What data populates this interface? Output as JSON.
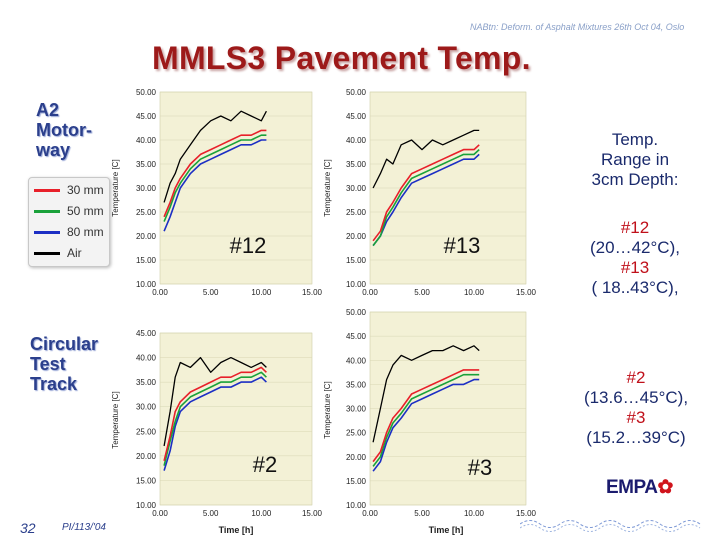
{
  "header_note": "NABtn: Deform. of Asphalt Mixtures 26th Oct 04, Oslo",
  "title": "MMLS3 Pavement Temp.",
  "section_a2": [
    "A2",
    "Motor-",
    "way"
  ],
  "section_track": [
    "Circular",
    "Test",
    "Track"
  ],
  "range_title": [
    "Temp.",
    "Range in",
    "3cm Depth:"
  ],
  "ranges_top": [
    {
      "label": "#12",
      "value": "(20…42°C),"
    },
    {
      "label": "#13",
      "value": "( 18..43°C),"
    }
  ],
  "ranges_bottom": [
    {
      "label": "#2",
      "value": "(13.6…45°C),"
    },
    {
      "label": "#3",
      "value": "(15.2…39°C)"
    }
  ],
  "legend": [
    {
      "label": "30 mm",
      "color": "#e8202a"
    },
    {
      "label": "50 mm",
      "color": "#1aa13a"
    },
    {
      "label": "80 mm",
      "color": "#1c2fc4"
    },
    {
      "label": "Air",
      "color": "#000000"
    }
  ],
  "page_number": "32",
  "page_date": "PI/113/'04",
  "logo": "EMPA",
  "chart_data": [
    {
      "type": "line",
      "panel_label": "#12",
      "ylabel": "Temperature [C]",
      "xlabel": "",
      "ylim": [
        10,
        50
      ],
      "xlim": [
        0,
        15
      ],
      "yticks": [
        "10.00",
        "15.00",
        "20.00",
        "25.00",
        "30.00",
        "35.00",
        "40.00",
        "45.00",
        "50.00"
      ],
      "xticks": [
        "0.00",
        "5.00",
        "10.00",
        "15.00"
      ],
      "x": [
        0.4,
        1,
        1.5,
        2,
        3,
        4,
        5,
        6,
        7,
        8,
        9,
        10,
        10.5
      ],
      "series": [
        {
          "name": "Air",
          "values": [
            27,
            31,
            33,
            36,
            39,
            42,
            44,
            45,
            44,
            46,
            45,
            44,
            46
          ]
        },
        {
          "name": "30 mm",
          "values": [
            24,
            27,
            30,
            32,
            35,
            37,
            38,
            39,
            40,
            41,
            41,
            42,
            42
          ]
        },
        {
          "name": "50 mm",
          "values": [
            23,
            26,
            29,
            31,
            34,
            36,
            37,
            38,
            39,
            40,
            40,
            41,
            41
          ]
        },
        {
          "name": "80 mm",
          "values": [
            21,
            24,
            27,
            30,
            33,
            35,
            36,
            37,
            38,
            39,
            39,
            40,
            40
          ]
        }
      ]
    },
    {
      "type": "line",
      "panel_label": "#13",
      "ylabel": "Temperature [C]",
      "xlabel": "",
      "ylim": [
        10,
        50
      ],
      "xlim": [
        0,
        15
      ],
      "yticks": [
        "10.00",
        "15.00",
        "20.00",
        "25.00",
        "30.00",
        "35.00",
        "40.00",
        "45.00",
        "50.00"
      ],
      "xticks": [
        "0.00",
        "5.00",
        "10.00",
        "15.00"
      ],
      "x": [
        0.3,
        1,
        1.6,
        2.2,
        3,
        4,
        5,
        6,
        7,
        8,
        9,
        10,
        10.5
      ],
      "series": [
        {
          "name": "Air",
          "values": [
            30,
            33,
            36,
            35,
            39,
            40,
            38,
            40,
            39,
            40,
            41,
            42,
            42
          ]
        },
        {
          "name": "30 mm",
          "values": [
            19,
            21,
            25,
            27,
            30,
            33,
            34,
            35,
            36,
            37,
            38,
            38,
            39
          ]
        },
        {
          "name": "50 mm",
          "values": [
            18,
            20,
            24,
            26,
            29,
            32,
            33,
            34,
            35,
            36,
            37,
            37,
            38
          ]
        },
        {
          "name": "80 mm",
          "values": [
            18,
            20,
            23,
            25,
            28,
            31,
            32,
            33,
            34,
            35,
            36,
            36,
            37
          ]
        }
      ]
    },
    {
      "type": "line",
      "panel_label": "#2",
      "ylabel": "Temperature [C]",
      "xlabel": "",
      "ylim": [
        10,
        45
      ],
      "xlim": [
        0,
        15
      ],
      "yticks": [
        "10.00",
        "15.00",
        "20.00",
        "25.00",
        "30.00",
        "35.00",
        "40.00",
        "45.00"
      ],
      "xticks": [
        "0.00",
        "5.00",
        "10.00",
        "15.00"
      ],
      "x": [
        0.4,
        1,
        1.5,
        2,
        3,
        4,
        5,
        6,
        7,
        8,
        9,
        10,
        10.5
      ],
      "series": [
        {
          "name": "Air",
          "values": [
            22,
            29,
            36,
            39,
            38,
            40,
            37,
            39,
            40,
            39,
            38,
            39,
            38
          ]
        },
        {
          "name": "30 mm",
          "values": [
            19,
            24,
            29,
            31,
            33,
            34,
            35,
            36,
            36,
            37,
            37,
            38,
            37
          ]
        },
        {
          "name": "50 mm",
          "values": [
            18,
            23,
            27,
            30,
            32,
            33,
            34,
            35,
            35,
            36,
            36,
            37,
            36
          ]
        },
        {
          "name": "80 mm",
          "values": [
            17,
            21,
            26,
            29,
            31,
            32,
            33,
            34,
            34,
            35,
            35,
            36,
            35
          ]
        }
      ]
    },
    {
      "type": "line",
      "panel_label": "#3",
      "ylabel": "Temperature [C]",
      "xlabel": "",
      "ylim": [
        10,
        50
      ],
      "xlim": [
        0,
        15
      ],
      "yticks": [
        "10.00",
        "15.00",
        "20.00",
        "25.00",
        "30.00",
        "35.00",
        "40.00",
        "45.00",
        "50.00"
      ],
      "xticks": [
        "0.00",
        "5.00",
        "10.00",
        "15.00"
      ],
      "x": [
        0.3,
        1,
        1.6,
        2.2,
        3,
        4,
        5,
        6,
        7,
        8,
        9,
        10,
        10.5
      ],
      "series": [
        {
          "name": "Air",
          "values": [
            23,
            30,
            36,
            39,
            41,
            40,
            41,
            42,
            42,
            43,
            42,
            43,
            42
          ]
        },
        {
          "name": "30 mm",
          "values": [
            19,
            21,
            25,
            28,
            30,
            33,
            34,
            35,
            36,
            37,
            38,
            38,
            38
          ]
        },
        {
          "name": "50 mm",
          "values": [
            18,
            20,
            24,
            27,
            29,
            32,
            33,
            34,
            35,
            36,
            37,
            37,
            37
          ]
        },
        {
          "name": "80 mm",
          "values": [
            17,
            19,
            23,
            26,
            28,
            31,
            32,
            33,
            34,
            35,
            35,
            36,
            36
          ]
        }
      ]
    },
    {
      "type": "axis",
      "xlabel": "Time [h]",
      "xticks": [
        "0.00",
        "5.00",
        "10.00",
        "15.00"
      ]
    },
    {
      "type": "axis",
      "xlabel": "Time [h]",
      "xticks": [
        "0.00",
        "5.00",
        "10.00",
        "15.00"
      ]
    }
  ]
}
